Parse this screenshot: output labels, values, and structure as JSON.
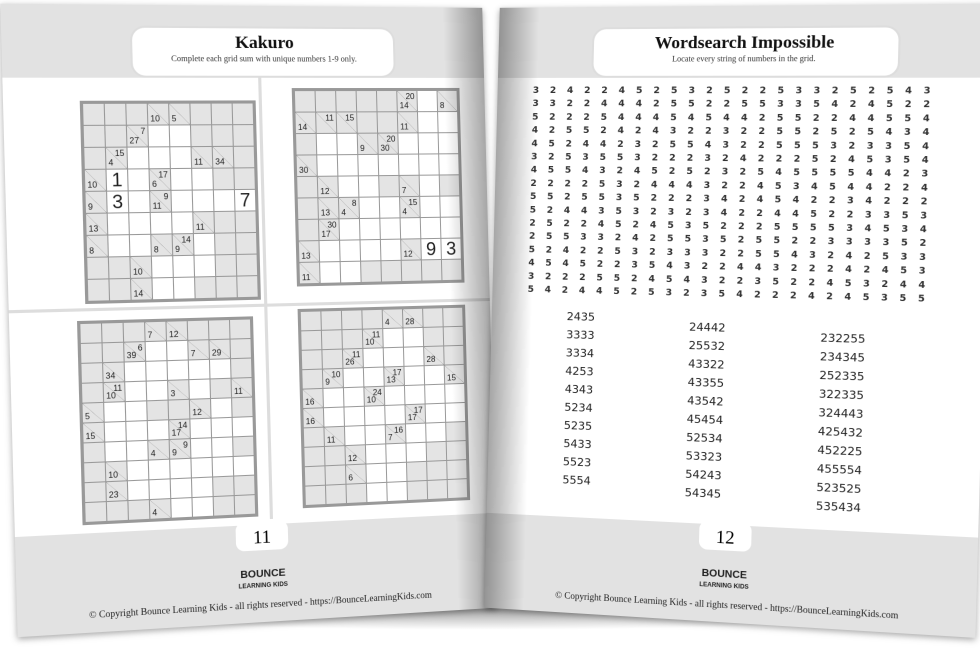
{
  "left_page": {
    "title": "Kakuro",
    "subtitle": "Complete each grid sum with unique numbers 1-9 only.",
    "page_number": "11",
    "logo": "BOUNCE LEARNING KIDS",
    "copyright": "© Copyright Bounce Learning Kids - all rights reserved - https://BounceLearningKids.com",
    "puzzles": [
      {
        "rows": [
          "########",
          "###..###",
          "##...###",
          "#..#..##",
          "#..#...#",
          "#.....##",
          "#..#..##",
          "###...##",
          "###..###"
        ],
        "clues": [
          [
            0,
            3,
            "",
            "10"
          ],
          [
            0,
            4,
            "",
            "5"
          ],
          [
            1,
            2,
            "7",
            "27"
          ],
          [
            2,
            1,
            "15",
            "4"
          ],
          [
            2,
            5,
            "",
            "11"
          ],
          [
            2,
            6,
            "",
            "34"
          ],
          [
            3,
            0,
            "",
            "10"
          ],
          [
            3,
            3,
            "17",
            "6"
          ],
          [
            4,
            0,
            "",
            "9"
          ],
          [
            4,
            3,
            "9",
            "11"
          ],
          [
            4,
            7,
            "12",
            ""
          ],
          [
            5,
            0,
            "",
            "13"
          ],
          [
            5,
            5,
            "",
            "11"
          ],
          [
            6,
            0,
            "",
            "8"
          ],
          [
            6,
            3,
            "",
            "8"
          ],
          [
            6,
            4,
            "14",
            "9"
          ],
          [
            7,
            2,
            "",
            "10"
          ],
          [
            8,
            2,
            "",
            "14"
          ]
        ],
        "given": [
          [
            3,
            1,
            "1"
          ],
          [
            4,
            1,
            "3"
          ],
          [
            4,
            7,
            "7"
          ]
        ]
      },
      {
        "rows": [
          "######..",
          "#####...",
          "#..#....",
          "#.......",
          "##..##.#",
          "##...#..",
          "#.......",
          "#.....##",
          "#..#####"
        ],
        "clues": [
          [
            0,
            5,
            "20",
            "14"
          ],
          [
            0,
            7,
            "",
            "8"
          ],
          [
            1,
            1,
            "11",
            ""
          ],
          [
            1,
            2,
            "15",
            ""
          ],
          [
            1,
            0,
            "",
            "14"
          ],
          [
            2,
            4,
            "20",
            "30"
          ],
          [
            2,
            3,
            "",
            "9"
          ],
          [
            1,
            5,
            "",
            "11"
          ],
          [
            3,
            0,
            "",
            "30"
          ],
          [
            4,
            1,
            "",
            "12"
          ],
          [
            4,
            5,
            "",
            "7"
          ],
          [
            5,
            2,
            "8",
            "4"
          ],
          [
            5,
            1,
            "",
            "13"
          ],
          [
            5,
            5,
            "15",
            "4"
          ],
          [
            6,
            1,
            "30",
            "17"
          ],
          [
            7,
            0,
            "",
            "13"
          ],
          [
            7,
            5,
            "",
            "12"
          ],
          [
            8,
            0,
            "",
            "11"
          ]
        ],
        "given": [
          [
            7,
            6,
            "9"
          ],
          [
            7,
            7,
            "3"
          ]
        ]
      },
      {
        "rows": [
          "########",
          "###..###",
          "##.....#",
          "#.....##",
          "#..##..#",
          "#...#...",
          "#..#...#",
          "#.......",
          "##....##",
          "####..##"
        ],
        "clues": [
          [
            0,
            3,
            "",
            "7"
          ],
          [
            0,
            4,
            "",
            "12"
          ],
          [
            1,
            2,
            "6",
            "39"
          ],
          [
            1,
            5,
            "",
            "7"
          ],
          [
            1,
            6,
            "",
            "29"
          ],
          [
            2,
            1,
            "",
            "34"
          ],
          [
            3,
            1,
            "11",
            "10"
          ],
          [
            3,
            4,
            "",
            "3"
          ],
          [
            3,
            7,
            "",
            "11"
          ],
          [
            4,
            0,
            "",
            "5"
          ],
          [
            4,
            5,
            "",
            "12"
          ],
          [
            5,
            0,
            "",
            "15"
          ],
          [
            5,
            4,
            "14",
            "17"
          ],
          [
            6,
            3,
            "",
            "4"
          ],
          [
            6,
            4,
            "9",
            "9"
          ],
          [
            7,
            1,
            "",
            "10"
          ],
          [
            8,
            1,
            "",
            "23"
          ],
          [
            9,
            3,
            "",
            "4"
          ]
        ],
        "given": []
      },
      {
        "rows": [
          "########",
          "####..##",
          "###...##",
          "##.....#",
          "#.......",
          "#.......",
          "#......#",
          "##....##",
          "###..###",
          "###..###"
        ],
        "clues": [
          [
            0,
            4,
            "",
            "4"
          ],
          [
            0,
            5,
            "",
            "28"
          ],
          [
            1,
            3,
            "11",
            "10"
          ],
          [
            2,
            2,
            "11",
            "26"
          ],
          [
            2,
            6,
            "",
            "28"
          ],
          [
            3,
            1,
            "10",
            "9"
          ],
          [
            3,
            4,
            "17",
            "13"
          ],
          [
            3,
            7,
            "",
            "15"
          ],
          [
            4,
            0,
            "",
            "16"
          ],
          [
            4,
            3,
            "24",
            "10"
          ],
          [
            5,
            0,
            "",
            "16"
          ],
          [
            5,
            5,
            "17",
            "17"
          ],
          [
            6,
            1,
            "",
            "11"
          ],
          [
            6,
            4,
            "16",
            "7"
          ],
          [
            7,
            2,
            "",
            "12"
          ],
          [
            8,
            2,
            "",
            "6"
          ]
        ],
        "given": []
      }
    ]
  },
  "right_page": {
    "title": "Wordsearch Impossible",
    "subtitle": "Locate every string of numbers in the grid.",
    "page_number": "12",
    "logo": "BOUNCE LEARNING KIDS",
    "copyright": "© Copyright Bounce Learning Kids - all rights reserved - https://BounceLearningKids.com",
    "grid": [
      "32422452532522533252543",
      "33224442552255335424522",
      "52225444545442552244554",
      "42552424322322552525434",
      "45244232554322555323354",
      "32535532223242225245354",
      "45543245252325455554423",
      "22225324443224534544224",
      "55255352223424542234222",
      "52443532323422445223353",
      "25224524535222555534534",
      "25533242553525522333352",
      "52422532333225543242533",
      "45452235432244322242453",
      "32225524543223522453244",
      "54244525323542224245355"
    ],
    "words": [
      [
        "2435",
        "3333",
        "3334",
        "4253",
        "4343",
        "5234",
        "5235",
        "5433",
        "5523",
        "5554"
      ],
      [
        "24442",
        "25532",
        "43322",
        "43355",
        "43542",
        "45454",
        "52534",
        "53323",
        "54243",
        "54345"
      ],
      [
        "232255",
        "234345",
        "252335",
        "322335",
        "324443",
        "425432",
        "452225",
        "455554",
        "523525",
        "535434"
      ]
    ]
  }
}
